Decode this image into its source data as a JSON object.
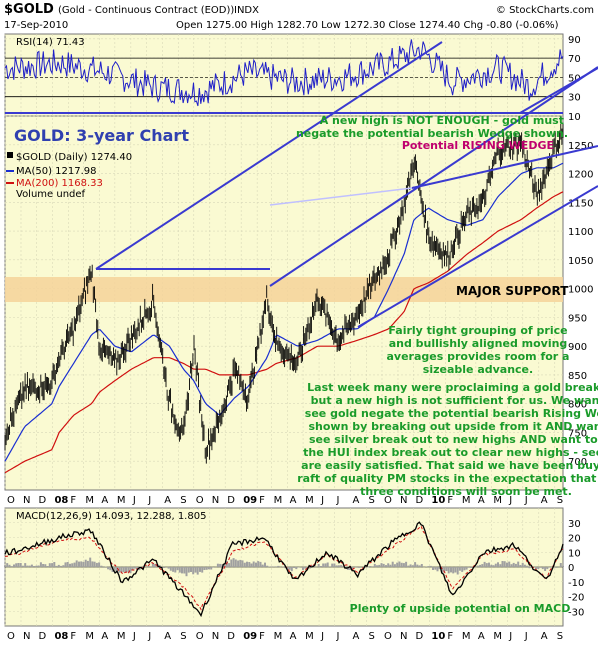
{
  "header": {
    "symbol_title": "$GOLD",
    "symbol_desc": "(Gold - Continuous Contract (EOD))",
    "exchange": "INDX",
    "watermark": "© StockCharts.com",
    "date": "17-Sep-2010",
    "ohlc": "Open 1275.00  High 1282.70  Low 1272.30  Close 1274.40  Chg -0.80 (-0.06%)"
  },
  "colors": {
    "panel_bg": "#fafad2",
    "price": "#000000",
    "ma50": "#1a2fd1",
    "ma200": "#d01010",
    "rsi": "#2020c8",
    "trendline": "#3a3ad0",
    "green_text": "#1a9b2a",
    "magenta_text": "#c0006e",
    "support_band": "#f5d29a",
    "title_text": "#3040b0",
    "macd_hist": "#a0a0a0"
  },
  "labels": {
    "chart_title": "GOLD: 3-year Chart",
    "major_support": "MAJOR SUPPORT",
    "rising_wedge": "Potential RISING WEDGE",
    "note_new_high": [
      "A new high is NOT ENOUGH - gold must",
      "negate the potential bearish Wedge shown."
    ],
    "note_grouping": [
      "Fairly tight grouping of price",
      "and bullishly aligned moving",
      "averages provides room for a",
      "sizeable advance."
    ],
    "note_last_week": [
      "Last week many were proclaiming a gold breakout,",
      "but a new high is not sufficient for us. We want to",
      "see gold negate the potential bearish Rising Wedge",
      "shown by breaking out upside from it AND want to",
      "see silver break out to new highs AND want to see",
      "the HUI index break out to clear new highs - see, we",
      "are easily satisfied. That said we have been buying a",
      "raft of quality PM stocks in the expectation that these",
      "three conditions will soon be met."
    ],
    "note_macd": "Plenty of upside potential on MACD"
  },
  "legend": {
    "price": "$GOLD (Daily) 1274.40",
    "ma50": "MA(50) 1217.98",
    "ma200": "MA(200) 1168.33",
    "volume": "Volume undef"
  },
  "chart_data": [
    {
      "type": "line",
      "name": "RSI",
      "title": "RSI(14) 71.43",
      "ylim": [
        10,
        95
      ],
      "yticks": [
        10,
        30,
        50,
        70,
        90
      ],
      "reference_lines": [
        30,
        70
      ],
      "x": [
        "2007-10",
        "2008-01",
        "2008-04",
        "2008-07",
        "2008-10",
        "2009-01",
        "2009-04",
        "2009-07",
        "2009-10",
        "2009-12",
        "2010-02",
        "2010-05",
        "2010-07",
        "2010-09"
      ],
      "values": [
        60,
        65,
        55,
        40,
        35,
        55,
        45,
        50,
        65,
        80,
        45,
        60,
        40,
        71.4
      ]
    },
    {
      "type": "line",
      "name": "Price",
      "ylim": [
        650,
        1300
      ],
      "yticks": [
        700,
        750,
        800,
        850,
        900,
        950,
        1000,
        1050,
        1100,
        1150,
        1200,
        1250
      ],
      "x": [
        "2007-10-01",
        "2007-11-08",
        "2007-12-31",
        "2008-01-14",
        "2008-02-11",
        "2008-03-17",
        "2008-04-01",
        "2008-05-01",
        "2008-06-02",
        "2008-07-15",
        "2008-08-15",
        "2008-09-11",
        "2008-10-01",
        "2008-10-24",
        "2008-11-20",
        "2008-12-19",
        "2009-01-15",
        "2009-02-20",
        "2009-03-10",
        "2009-04-20",
        "2009-05-29",
        "2009-07-08",
        "2009-08-14",
        "2009-09-16",
        "2009-10-14",
        "2009-11-13",
        "2009-12-02",
        "2009-12-30",
        "2010-02-05",
        "2010-03-15",
        "2010-04-15",
        "2010-05-14",
        "2010-06-28",
        "2010-07-28",
        "2010-08-30",
        "2010-09-17"
      ],
      "series": [
        {
          "name": "$GOLD (Daily)",
          "values": [
            745,
            825,
            835,
            880,
            930,
            1032,
            900,
            870,
            915,
            980,
            800,
            740,
            900,
            720,
            770,
            860,
            810,
            985,
            905,
            870,
            985,
            910,
            955,
            1015,
            1060,
            1145,
            1225,
            1090,
            1055,
            1130,
            1150,
            1240,
            1255,
            1160,
            1240,
            1274.4
          ]
        },
        {
          "name": "MA(50)",
          "values": [
            700,
            760,
            800,
            830,
            870,
            920,
            930,
            900,
            890,
            920,
            900,
            860,
            840,
            800,
            780,
            810,
            830,
            880,
            920,
            900,
            910,
            930,
            930,
            950,
            1000,
            1060,
            1120,
            1140,
            1120,
            1110,
            1120,
            1160,
            1200,
            1210,
            1210,
            1218
          ]
        },
        {
          "name": "MA(200)",
          "values": [
            680,
            700,
            720,
            750,
            780,
            800,
            820,
            840,
            860,
            880,
            880,
            870,
            860,
            860,
            850,
            850,
            850,
            860,
            870,
            880,
            900,
            900,
            910,
            920,
            930,
            960,
            1000,
            1010,
            1030,
            1060,
            1080,
            1100,
            1120,
            1140,
            1160,
            1168.3
          ]
        }
      ],
      "annotations": [
        "MAJOR SUPPORT band approx. 970-1030",
        "Potential RISING WEDGE"
      ]
    },
    {
      "type": "line",
      "name": "MACD",
      "title": "MACD(12,26,9) 14.093, 12.288, 1.805",
      "ylim": [
        -40,
        40
      ],
      "yticks": [
        -30,
        -20,
        -10,
        0,
        10,
        20,
        30
      ],
      "x": [
        "2007-10",
        "2008-01",
        "2008-03",
        "2008-05",
        "2008-07",
        "2008-09",
        "2008-10",
        "2008-12",
        "2009-02",
        "2009-04",
        "2009-06",
        "2009-08",
        "2009-10",
        "2009-12",
        "2010-02",
        "2010-04",
        "2010-06",
        "2010-08",
        "2010-09"
      ],
      "series": [
        {
          "name": "MACD",
          "values": [
            10,
            20,
            25,
            -10,
            5,
            -20,
            -32,
            15,
            20,
            -10,
            10,
            -5,
            15,
            30,
            -20,
            10,
            15,
            -10,
            14.1
          ]
        },
        {
          "name": "Signal",
          "values": [
            8,
            18,
            20,
            -5,
            3,
            -15,
            -28,
            10,
            18,
            -8,
            8,
            -3,
            12,
            28,
            -15,
            8,
            12,
            -8,
            12.3
          ]
        },
        {
          "name": "Histogram",
          "values": [
            2,
            2,
            5,
            -5,
            2,
            -5,
            -4,
            5,
            2,
            -2,
            2,
            -2,
            3,
            2,
            -5,
            2,
            3,
            -2,
            1.8
          ]
        }
      ]
    }
  ],
  "axes": {
    "x_months": [
      "O",
      "N",
      "D",
      "08",
      "F",
      "M",
      "A",
      "M",
      "J",
      "J",
      "A",
      "S",
      "O",
      "N",
      "D",
      "09",
      "F",
      "M",
      "A",
      "M",
      "J",
      "J",
      "A",
      "S",
      "O",
      "N",
      "D",
      "10",
      "F",
      "M",
      "A",
      "M",
      "J",
      "J",
      "A",
      "S"
    ]
  }
}
